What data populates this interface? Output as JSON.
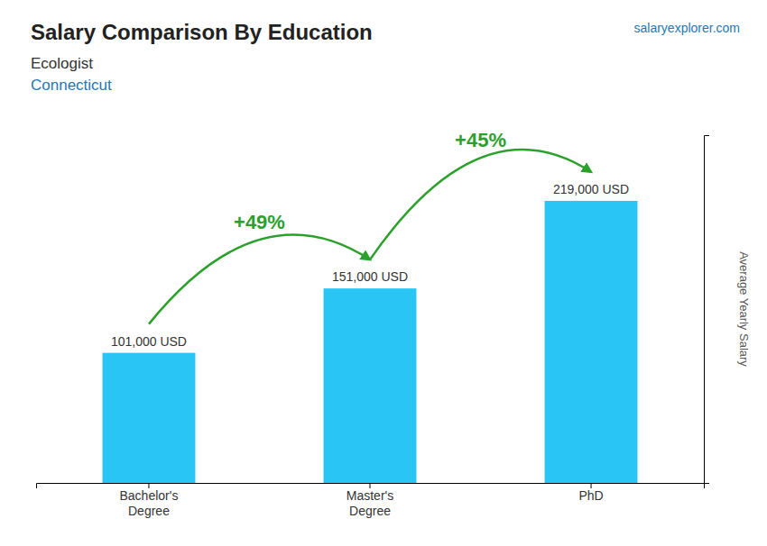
{
  "chart_data": {
    "type": "bar",
    "title": "Salary Comparison By Education",
    "subtitle": [
      "Ecologist",
      "Connecticut"
    ],
    "y_label": "Average Yearly Salary",
    "categories": [
      "Bachelor's\nDegree",
      "Master's\nDegree",
      "PhD"
    ],
    "values": [
      101000,
      151000,
      219000
    ],
    "value_labels": [
      "101,000 USD",
      "151,000 USD",
      "219,000 USD"
    ],
    "data_labels": true,
    "color": "#29C5F5",
    "annotations": [
      "+49%",
      "+45%",
      "salaryexplorer.com"
    ],
    "ylim": [
      0,
      270000
    ],
    "grid": false,
    "tick_labels": "x"
  }
}
